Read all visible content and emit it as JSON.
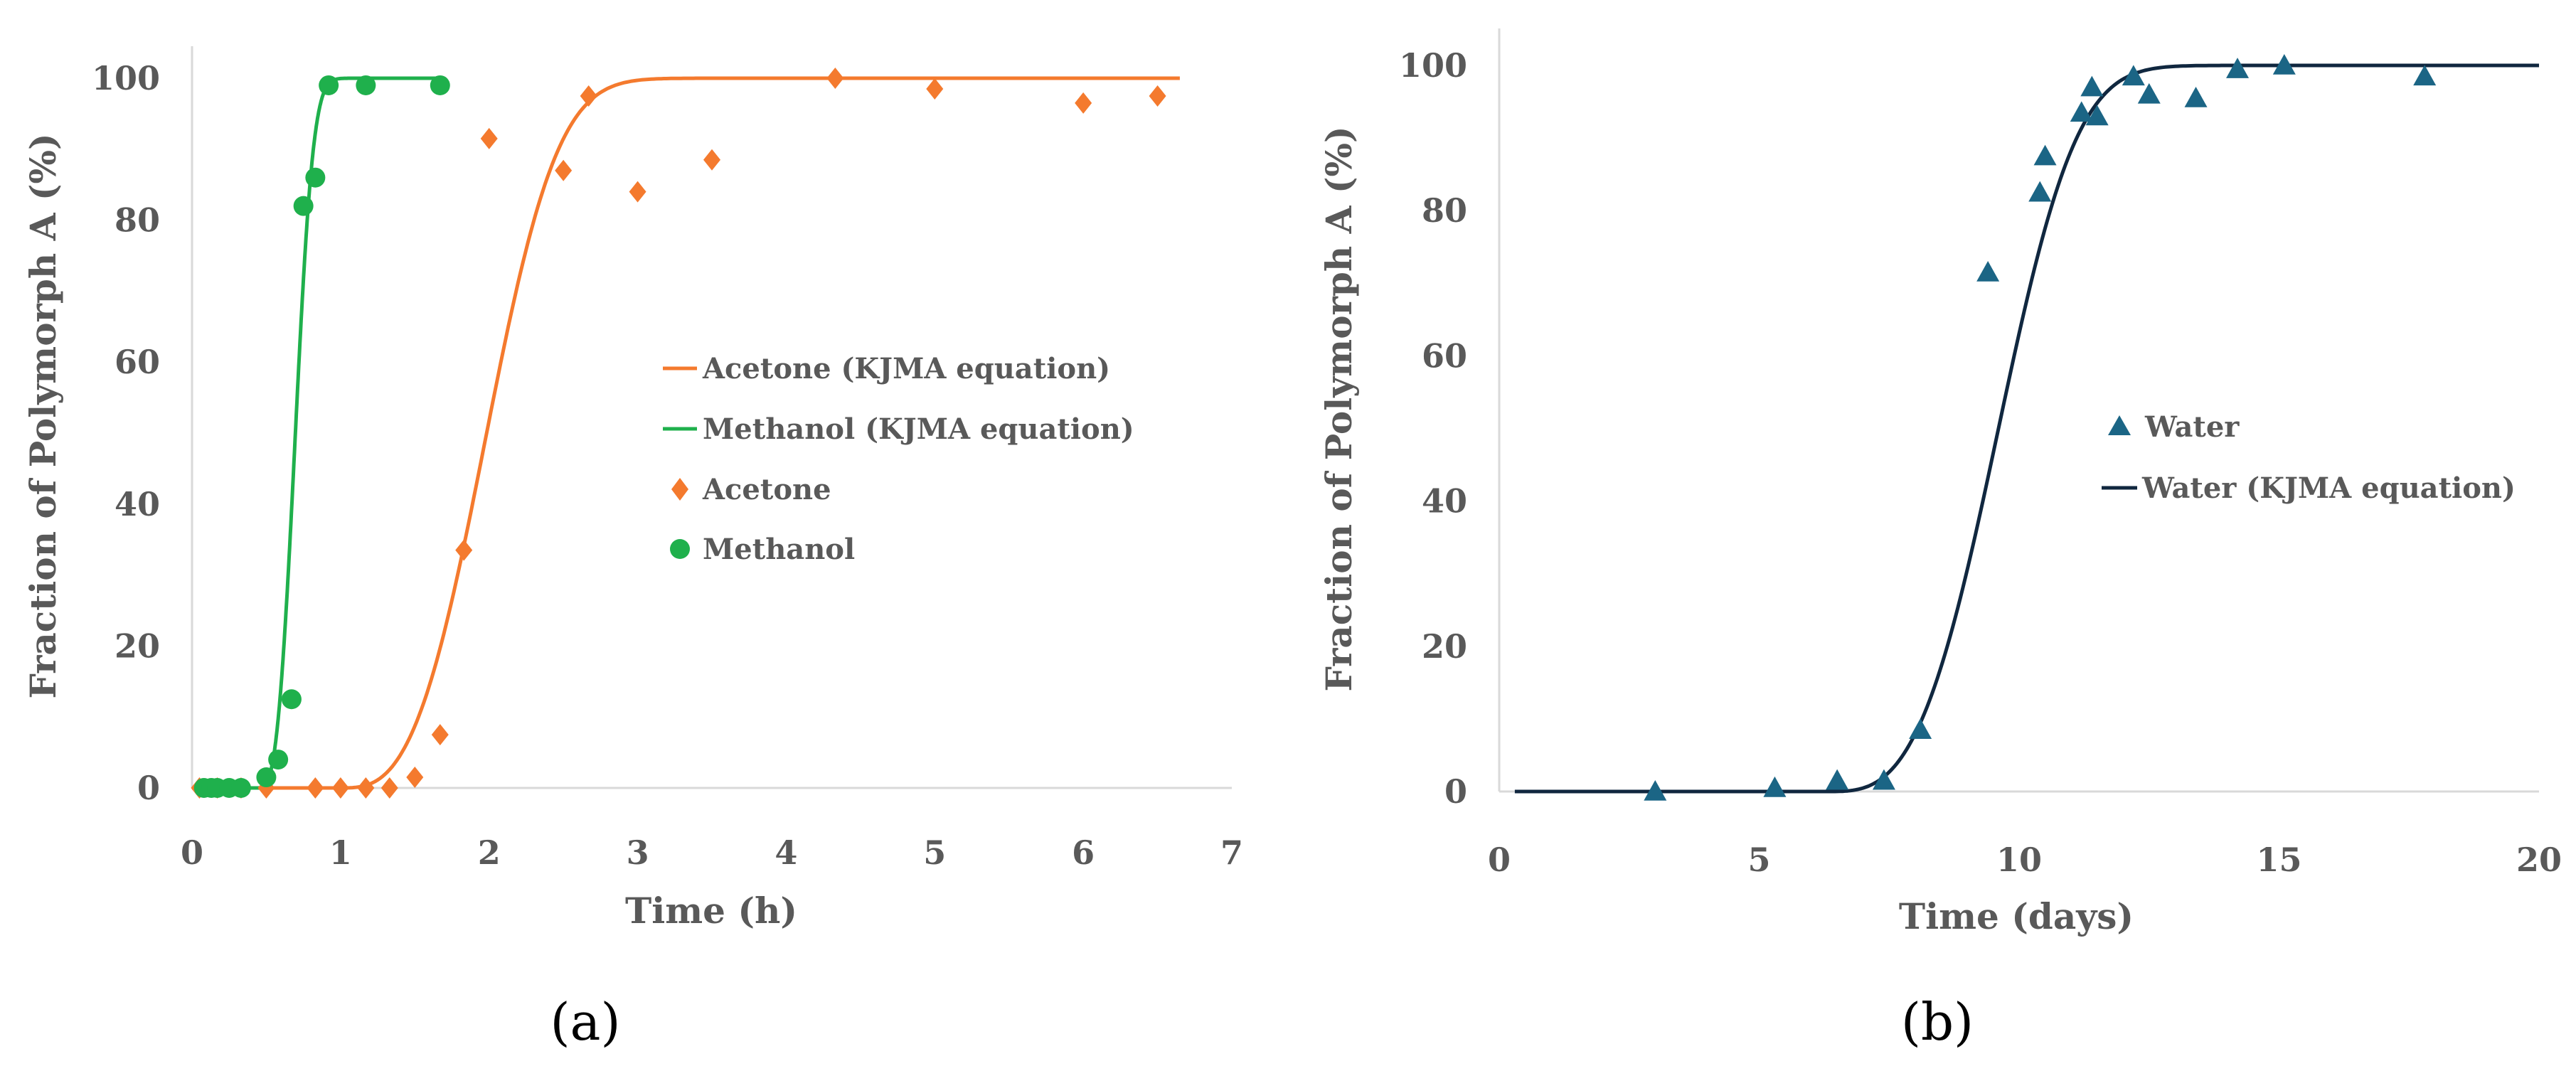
{
  "colors": {
    "acetone": "#F47A2E",
    "methanol": "#1FB04C",
    "water_marker": "#1B6585",
    "water_line": "#10273F",
    "axis": "#D9D9D9",
    "text": "#595959"
  },
  "chart_data": [
    {
      "panel": "a",
      "label": "(a)",
      "type": "scatter",
      "xlabel": "Time (h)",
      "ylabel": "Fraction of Polymorph A  (%)",
      "xlim": [
        0,
        7
      ],
      "ylim": [
        0,
        100
      ],
      "xticks": [
        0,
        1,
        2,
        3,
        4,
        5,
        6,
        7
      ],
      "yticks": [
        0,
        20,
        40,
        60,
        80,
        100
      ],
      "grid": false,
      "legend_position": "center-right",
      "series": [
        {
          "name": "Acetone (KJMA equation)",
          "kind": "line",
          "color": "#F47A2E",
          "model": "kjma",
          "t0": 1.0,
          "k": 0.9,
          "n": 3,
          "x_range": [
            0.0,
            6.65
          ]
        },
        {
          "name": "Methanol (KJMA equation)",
          "kind": "line",
          "color": "#1FB04C",
          "model": "kjma",
          "t0": 0.45,
          "k": 3.6,
          "n": 3,
          "x_range": [
            0.05,
            1.68
          ]
        },
        {
          "name": "Acetone",
          "kind": "marker",
          "marker": "diamond",
          "color": "#F47A2E",
          "x": [
            0.05,
            0.17,
            0.33,
            0.5,
            0.83,
            1.0,
            1.17,
            1.33,
            1.5,
            1.67,
            1.83,
            2.0,
            2.5,
            2.67,
            3.0,
            3.5,
            4.33,
            5.0,
            6.0,
            6.5
          ],
          "y": [
            0,
            0,
            0,
            0,
            0,
            0,
            0,
            0,
            1.5,
            7.5,
            33.5,
            91.5,
            87,
            97.5,
            84,
            88.5,
            100,
            98.5,
            96.5,
            97.5
          ]
        },
        {
          "name": "Methanol",
          "kind": "marker",
          "marker": "circle",
          "color": "#1FB04C",
          "x": [
            0.08,
            0.13,
            0.17,
            0.25,
            0.33,
            0.5,
            0.58,
            0.67,
            0.75,
            0.83,
            0.92,
            1.17,
            1.67
          ],
          "y": [
            0,
            0,
            0,
            0,
            0,
            1.5,
            4,
            12.5,
            82,
            86,
            99,
            99,
            99
          ]
        }
      ]
    },
    {
      "panel": "b",
      "label": "(b)",
      "type": "scatter",
      "xlabel": "Time (days)",
      "ylabel": "Fraction of Polymorph A  (%)",
      "xlim": [
        0,
        20
      ],
      "ylim": [
        0,
        100
      ],
      "xticks": [
        0,
        5,
        10,
        15,
        20
      ],
      "yticks": [
        0,
        20,
        40,
        60,
        80,
        100
      ],
      "grid": false,
      "legend_position": "center-right",
      "series": [
        {
          "name": "Water",
          "kind": "marker",
          "marker": "triangle",
          "color": "#1B6585",
          "x": [
            3.0,
            5.3,
            6.5,
            7.4,
            8.1,
            9.4,
            10.4,
            10.5,
            11.2,
            11.4,
            11.5,
            12.2,
            12.5,
            13.4,
            14.2,
            15.1,
            17.8
          ],
          "y": [
            0,
            0.5,
            1.5,
            1.5,
            8.5,
            71.5,
            82.5,
            87.5,
            93.5,
            97,
            93,
            98.5,
            96,
            95.5,
            99.5,
            100,
            98.5
          ]
        },
        {
          "name": "Water (KJMA equation)",
          "kind": "line",
          "color": "#10273F",
          "model": "kjma",
          "t0": 6.3,
          "k": 0.27,
          "n": 3.2,
          "x_range": [
            0.3,
            20
          ]
        }
      ]
    }
  ]
}
